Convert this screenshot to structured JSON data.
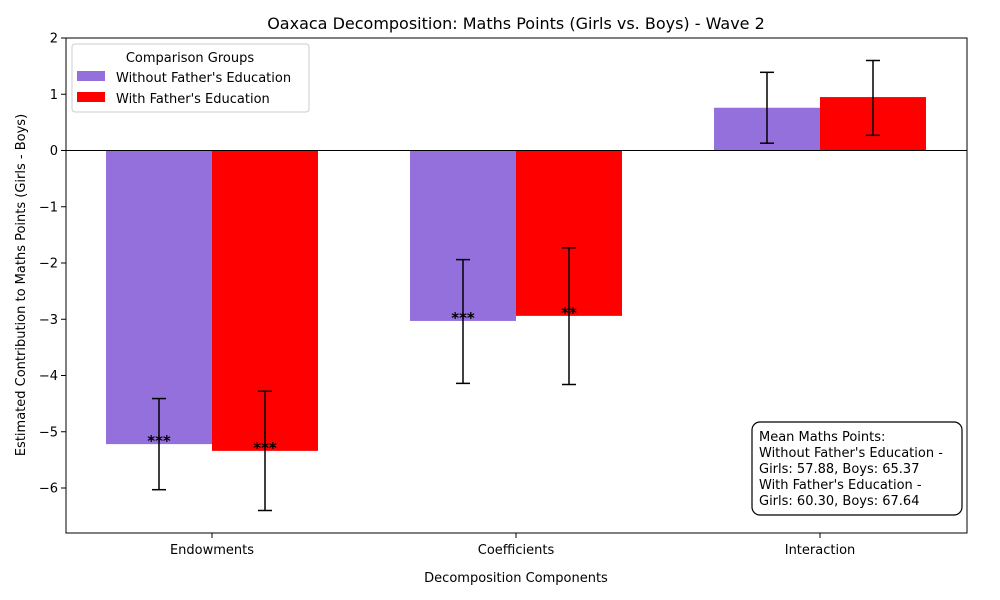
{
  "chart_data": {
    "type": "bar",
    "title": "Oaxaca Decomposition: Maths Points (Girls vs. Boys) - Wave 2",
    "xlabel": "Decomposition Components",
    "ylabel": "Estimated Contribution to Maths Points (Girls - Boys)",
    "categories": [
      "Endowments",
      "Coefficients",
      "Interaction"
    ],
    "ylim": [
      -6.8,
      2.0
    ],
    "yticks": [
      2,
      1,
      0,
      -1,
      -2,
      -3,
      -4,
      -5,
      -6
    ],
    "ytick_labels": [
      "2",
      "1",
      "0",
      "−1",
      "−2",
      "−3",
      "−4",
      "−5",
      "−6"
    ],
    "legend": {
      "title": "Comparison Groups",
      "placement": "top-left"
    },
    "series": [
      {
        "name": "Without Father's Education",
        "color": "#9370db",
        "values": [
          -5.22,
          -3.03,
          0.76
        ],
        "err_low": [
          -6.03,
          -4.14,
          0.13
        ],
        "err_high": [
          -4.41,
          -1.94,
          1.39
        ],
        "sig": [
          "***",
          "***",
          ""
        ]
      },
      {
        "name": "With Father's Education",
        "color": "#ff0000",
        "values": [
          -5.34,
          -2.94,
          0.95
        ],
        "err_low": [
          -6.4,
          -4.16,
          0.27
        ],
        "err_high": [
          -4.28,
          -1.73,
          1.6
        ],
        "sig": [
          "***",
          "**",
          ""
        ]
      }
    ],
    "annotation": {
      "lines": [
        "Mean Maths Points:",
        "Without Father's Education -",
        "Girls: 57.88, Boys: 65.37",
        "With Father's Education -",
        "Girls: 60.30, Boys: 67.64"
      ],
      "placement": "bottom-right"
    }
  }
}
